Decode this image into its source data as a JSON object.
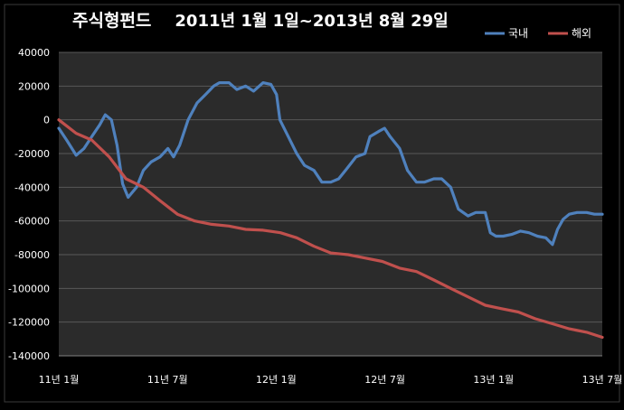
{
  "chart_data": {
    "type": "line",
    "title": "주식형펀드",
    "subtitle": "2011년 1월 1일~2013년 8월 29일",
    "xlabel": "",
    "ylabel": "",
    "ylim": [
      -140000,
      40000
    ],
    "yticks": [
      40000,
      20000,
      0,
      -20000,
      -40000,
      -60000,
      -80000,
      -100000,
      -120000,
      -140000
    ],
    "xticks": [
      "11년 1월",
      "11년 7월",
      "12년 1월",
      "12년 7월",
      "13년 1월",
      "13년 7월"
    ],
    "xlim": [
      "2011-01-01",
      "2013-08-29"
    ],
    "grid": true,
    "legend_position": "top-right",
    "series": [
      {
        "name": "국내",
        "color": "#4F81BD",
        "points": [
          [
            "2011-01-01",
            -5000
          ],
          [
            "2011-01-15",
            -12000
          ],
          [
            "2011-02-01",
            -21000
          ],
          [
            "2011-02-15",
            -17000
          ],
          [
            "2011-03-01",
            -10000
          ],
          [
            "2011-03-15",
            -3000
          ],
          [
            "2011-03-25",
            3000
          ],
          [
            "2011-04-05",
            0
          ],
          [
            "2011-04-15",
            -15000
          ],
          [
            "2011-04-25",
            -38000
          ],
          [
            "2011-05-05",
            -46000
          ],
          [
            "2011-05-20",
            -40000
          ],
          [
            "2011-06-01",
            -30000
          ],
          [
            "2011-06-15",
            -25000
          ],
          [
            "2011-07-01",
            -22000
          ],
          [
            "2011-07-15",
            -17000
          ],
          [
            "2011-07-25",
            -22000
          ],
          [
            "2011-08-05",
            -15000
          ],
          [
            "2011-08-20",
            0
          ],
          [
            "2011-09-05",
            10000
          ],
          [
            "2011-09-20",
            15000
          ],
          [
            "2011-10-05",
            20000
          ],
          [
            "2011-10-15",
            22000
          ],
          [
            "2011-11-01",
            22000
          ],
          [
            "2011-11-15",
            18000
          ],
          [
            "2011-12-01",
            20000
          ],
          [
            "2011-12-15",
            17000
          ],
          [
            "2012-01-01",
            22000
          ],
          [
            "2012-01-15",
            21000
          ],
          [
            "2012-01-25",
            15000
          ],
          [
            "2012-01-31",
            0
          ],
          [
            "2012-02-15",
            -10000
          ],
          [
            "2012-03-01",
            -20000
          ],
          [
            "2012-03-15",
            -27000
          ],
          [
            "2012-04-01",
            -30000
          ],
          [
            "2012-04-15",
            -37000
          ],
          [
            "2012-05-01",
            -37000
          ],
          [
            "2012-05-15",
            -35000
          ],
          [
            "2012-06-01",
            -28000
          ],
          [
            "2012-06-15",
            -22000
          ],
          [
            "2012-07-01",
            -20000
          ],
          [
            "2012-07-10",
            -10000
          ],
          [
            "2012-07-25",
            -7000
          ],
          [
            "2012-08-05",
            -5000
          ],
          [
            "2012-08-15",
            -10000
          ],
          [
            "2012-09-01",
            -17000
          ],
          [
            "2012-09-15",
            -30000
          ],
          [
            "2012-10-01",
            -37000
          ],
          [
            "2012-10-15",
            -37000
          ],
          [
            "2012-11-01",
            -35000
          ],
          [
            "2012-11-15",
            -35000
          ],
          [
            "2012-12-01",
            -40000
          ],
          [
            "2012-12-15",
            -53000
          ],
          [
            "2013-01-01",
            -57000
          ],
          [
            "2013-01-15",
            -55000
          ],
          [
            "2013-02-01",
            -55000
          ],
          [
            "2013-02-10",
            -67000
          ],
          [
            "2013-02-20",
            -69000
          ],
          [
            "2013-03-05",
            -69000
          ],
          [
            "2013-03-20",
            -68000
          ],
          [
            "2013-04-05",
            -66000
          ],
          [
            "2013-04-20",
            -67000
          ],
          [
            "2013-05-05",
            -69000
          ],
          [
            "2013-05-20",
            -70000
          ],
          [
            "2013-06-01",
            -74000
          ],
          [
            "2013-06-10",
            -65000
          ],
          [
            "2013-06-20",
            -59000
          ],
          [
            "2013-07-01",
            -56000
          ],
          [
            "2013-07-15",
            -55000
          ],
          [
            "2013-08-01",
            -55000
          ],
          [
            "2013-08-15",
            -56000
          ],
          [
            "2013-08-29",
            -56000
          ]
        ]
      },
      {
        "name": "해외",
        "color": "#C0504D",
        "points": [
          [
            "2011-01-01",
            0
          ],
          [
            "2011-02-01",
            -8000
          ],
          [
            "2011-03-01",
            -12000
          ],
          [
            "2011-04-01",
            -22000
          ],
          [
            "2011-05-01",
            -35000
          ],
          [
            "2011-06-01",
            -40000
          ],
          [
            "2011-07-01",
            -48000
          ],
          [
            "2011-08-01",
            -56000
          ],
          [
            "2011-09-01",
            -60000
          ],
          [
            "2011-10-01",
            -62000
          ],
          [
            "2011-11-01",
            -63000
          ],
          [
            "2011-12-01",
            -65000
          ],
          [
            "2012-01-01",
            -65500
          ],
          [
            "2012-02-01",
            -67000
          ],
          [
            "2012-03-01",
            -70000
          ],
          [
            "2012-04-01",
            -75000
          ],
          [
            "2012-05-01",
            -79000
          ],
          [
            "2012-06-01",
            -80000
          ],
          [
            "2012-07-01",
            -82000
          ],
          [
            "2012-08-01",
            -84000
          ],
          [
            "2012-09-01",
            -88000
          ],
          [
            "2012-10-01",
            -90000
          ],
          [
            "2012-11-01",
            -95000
          ],
          [
            "2012-12-01",
            -100000
          ],
          [
            "2013-01-01",
            -105000
          ],
          [
            "2013-02-01",
            -110000
          ],
          [
            "2013-03-01",
            -112000
          ],
          [
            "2013-04-01",
            -114000
          ],
          [
            "2013-05-01",
            -118000
          ],
          [
            "2013-06-01",
            -121000
          ],
          [
            "2013-07-01",
            -124000
          ],
          [
            "2013-08-01",
            -126000
          ],
          [
            "2013-08-29",
            -129000
          ]
        ]
      }
    ]
  }
}
